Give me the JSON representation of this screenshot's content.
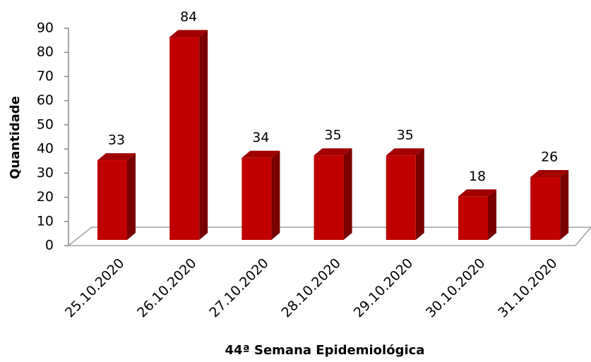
{
  "chart_data": {
    "type": "bar",
    "xlabel": "44ª Semana Epidemiológica",
    "ylabel": "Quantidade",
    "categories": [
      "25.10.2020",
      "26.10.2020",
      "27.10.2020",
      "28.10.2020",
      "29.10.2020",
      "30.10.2020",
      "31.10.2020"
    ],
    "values": [
      33,
      84,
      34,
      35,
      35,
      18,
      26
    ],
    "color": "#c00000",
    "ylim": [
      0,
      90
    ],
    "yticks": [
      0,
      10,
      20,
      30,
      40,
      50,
      60,
      70,
      80,
      90
    ],
    "grid": false
  }
}
